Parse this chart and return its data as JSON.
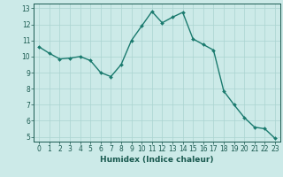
{
  "x": [
    0,
    1,
    2,
    3,
    4,
    5,
    6,
    7,
    8,
    9,
    10,
    11,
    12,
    13,
    14,
    15,
    16,
    17,
    18,
    19,
    20,
    21,
    22,
    23
  ],
  "y": [
    10.6,
    10.2,
    9.85,
    9.9,
    10.0,
    9.75,
    9.0,
    8.75,
    9.5,
    11.0,
    11.9,
    12.8,
    12.1,
    12.45,
    12.75,
    11.1,
    10.75,
    10.4,
    7.85,
    7.0,
    6.2,
    5.6,
    5.5,
    4.9
  ],
  "line_color": "#1a7a6e",
  "marker_color": "#1a7a6e",
  "bg_color": "#cceae8",
  "grid_color": "#aad4d0",
  "xlim": [
    -0.5,
    23.5
  ],
  "ylim": [
    4.7,
    13.3
  ],
  "yticks": [
    5,
    6,
    7,
    8,
    9,
    10,
    11,
    12,
    13
  ],
  "xticks": [
    0,
    1,
    2,
    3,
    4,
    5,
    6,
    7,
    8,
    9,
    10,
    11,
    12,
    13,
    14,
    15,
    16,
    17,
    18,
    19,
    20,
    21,
    22,
    23
  ],
  "xlabel": "Humidex (Indice chaleur)",
  "tick_color": "#1a5a50",
  "label_color": "#1a5a50",
  "font_size": 5.5,
  "xlabel_fontsize": 6.5,
  "linewidth": 1.0,
  "markersize": 2.0
}
